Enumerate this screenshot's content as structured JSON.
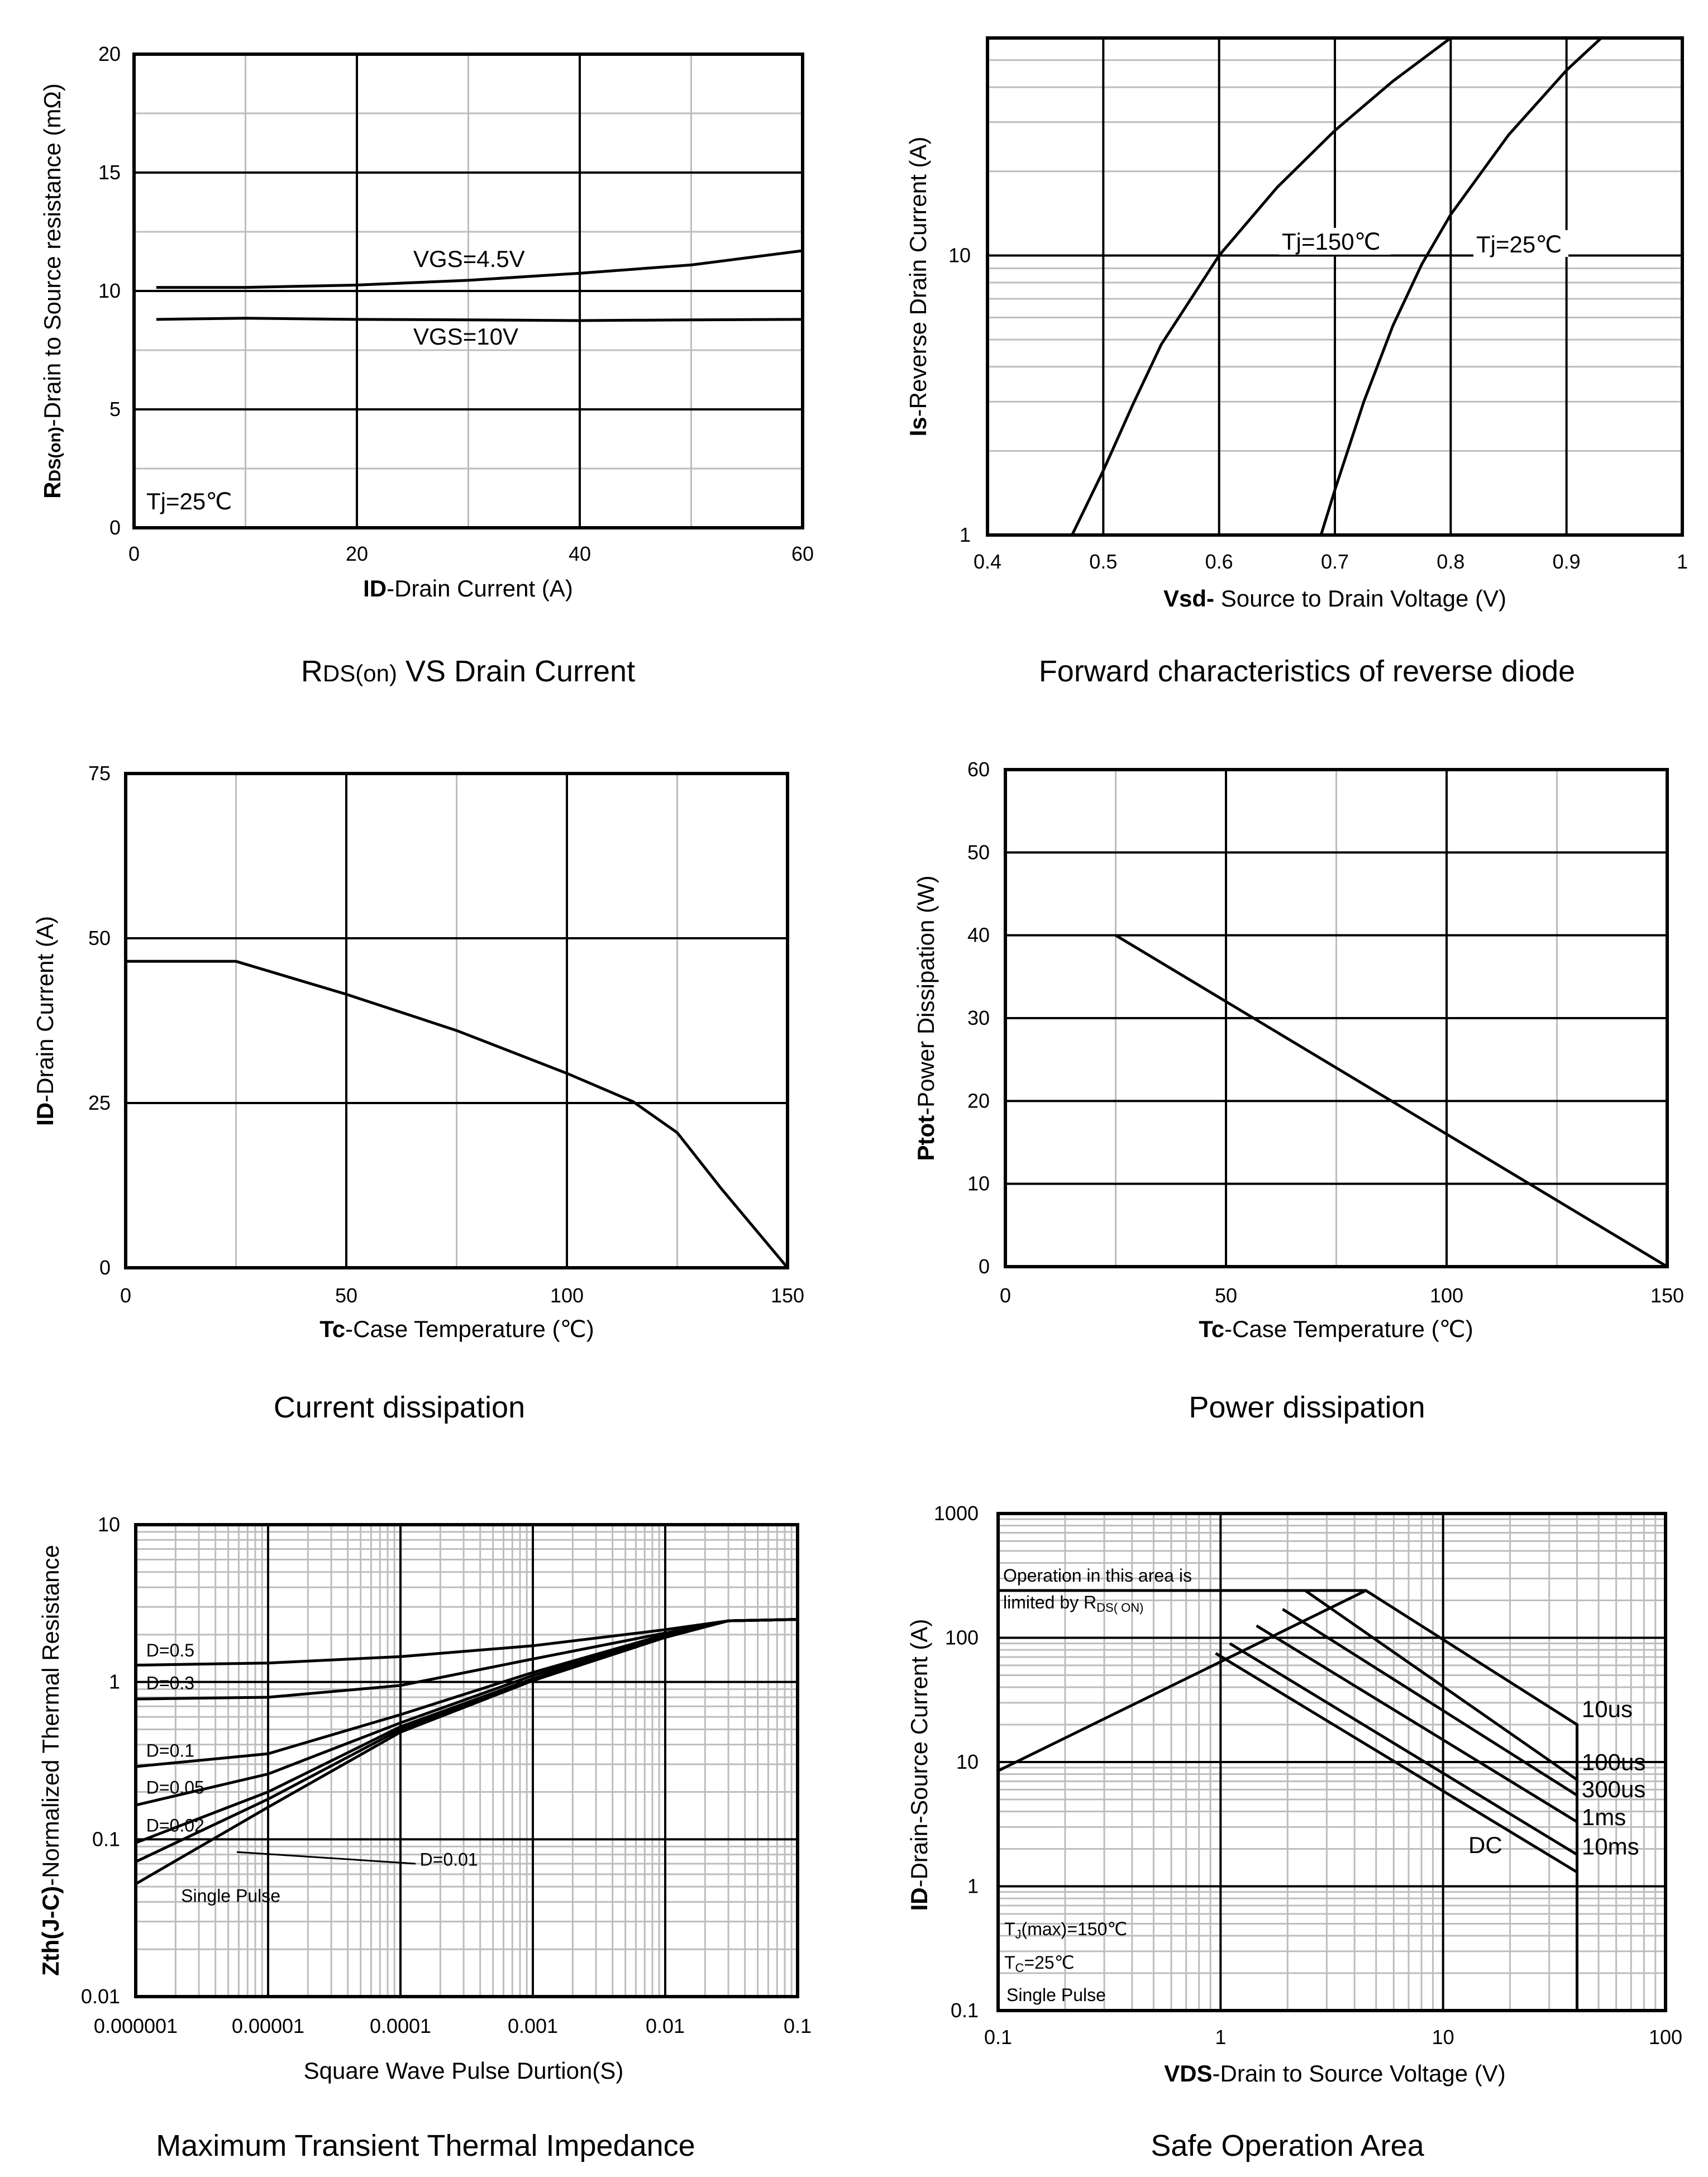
{
  "chart_data": [
    {
      "id": "rds",
      "type": "line",
      "title": "RDS(on) VS Drain Current",
      "title_parts": [
        "R",
        "DS(on)",
        " VS Drain Current"
      ],
      "xlabel": "ID-Drain Current (A)",
      "xlabel_parts": [
        "ID",
        "-Drain Current (A)"
      ],
      "ylabel": "RDS(on)-Drain to Source resistance (mΩ)",
      "ylabel_parts": [
        "R",
        "DS(on)",
        "-Drain to Source resistance (mΩ)"
      ],
      "xlim": [
        0,
        60
      ],
      "ylim": [
        0,
        20
      ],
      "xscale": "linear",
      "yscale": "linear",
      "xticks": [
        0,
        20,
        40,
        60
      ],
      "yticks": [
        0,
        5,
        10,
        15,
        20
      ],
      "xminor": [
        10,
        30,
        50
      ],
      "yminor": [
        2.5,
        7.5,
        12.5,
        17.5
      ],
      "series": [
        {
          "name": "VGS=4.5V",
          "x": [
            2,
            10,
            15,
            20,
            30,
            40,
            50,
            55,
            60
          ],
          "y": [
            10.15,
            10.15,
            10.2,
            10.25,
            10.45,
            10.75,
            11.1,
            11.4,
            11.7
          ]
        },
        {
          "name": "VGS=10V",
          "x": [
            2,
            5,
            10,
            20,
            30,
            40,
            50,
            60
          ],
          "y": [
            8.8,
            8.82,
            8.85,
            8.8,
            8.78,
            8.75,
            8.78,
            8.8
          ]
        }
      ],
      "annotations": [
        {
          "text": "VGS=4.5V",
          "x": 27,
          "y": 11.1
        },
        {
          "text": "VGS=10V",
          "x": 27,
          "y": 7.8
        },
        {
          "text": "Tj=25℃",
          "x": 1,
          "y": 0.8
        }
      ]
    },
    {
      "id": "diode",
      "type": "line",
      "title": "Forward characteristics of reverse diode",
      "xlabel": "Vsd- Source to Drain Voltage (V)",
      "xlabel_parts": [
        "Vsd-",
        " Source to Drain Voltage (V)"
      ],
      "ylabel": "Is-Reverse Drain Current (A)",
      "ylabel_parts": [
        "Is",
        "-Reverse Drain Current (A)"
      ],
      "xlim": [
        0.4,
        1.0
      ],
      "ylim": [
        1,
        60
      ],
      "xscale": "linear",
      "yscale": "log",
      "xticks": [
        0.4,
        0.5,
        0.6,
        0.7,
        0.8,
        0.9,
        1.0
      ],
      "xticklabels": [
        "0.4",
        "0.5",
        "0.6",
        "0.7",
        "0.8",
        "0.9",
        "1"
      ],
      "yticks": [
        1,
        10
      ],
      "yminor": [
        2,
        3,
        4,
        5,
        6,
        7,
        8,
        9,
        20,
        30,
        40,
        50
      ],
      "series": [
        {
          "name": "Tj=150℃",
          "x": [
            0.473,
            0.5,
            0.525,
            0.55,
            0.6,
            0.65,
            0.7,
            0.75,
            0.8
          ],
          "y": [
            1.0,
            1.7,
            2.9,
            4.8,
            10.0,
            17.5,
            28.0,
            42.0,
            60.0
          ]
        },
        {
          "name": "Tj=25℃",
          "x": [
            0.688,
            0.7,
            0.725,
            0.75,
            0.775,
            0.8,
            0.85,
            0.9,
            0.93
          ],
          "y": [
            1.0,
            1.45,
            3.0,
            5.6,
            9.3,
            14.0,
            27.0,
            46.0,
            60.0
          ]
        }
      ],
      "annotations": [
        {
          "text": "Tj=150℃",
          "x": 0.655,
          "y": 10.9
        },
        {
          "text": "Tj=25℃",
          "x": 0.822,
          "y": 10.6
        }
      ]
    },
    {
      "id": "current",
      "type": "line",
      "title": "Current dissipation",
      "xlabel": "Tc-Case Temperature (℃)",
      "xlabel_parts": [
        "Tc",
        "-Case Temperature (℃)"
      ],
      "ylabel": "ID-Drain Current (A)",
      "ylabel_parts": [
        "ID",
        "-Drain Current (A)"
      ],
      "xlim": [
        0,
        150
      ],
      "ylim": [
        0,
        75
      ],
      "xscale": "linear",
      "yscale": "linear",
      "xticks": [
        0,
        50,
        100,
        150
      ],
      "yticks": [
        0,
        25,
        50,
        75
      ],
      "xminor": [
        25,
        75,
        125
      ],
      "yminor": [],
      "series": [
        {
          "name": "ID",
          "x": [
            0,
            25,
            50,
            75,
            100,
            115,
            125,
            135,
            150
          ],
          "y": [
            46.5,
            46.5,
            41.5,
            36,
            29.5,
            25.2,
            20.5,
            12,
            0
          ]
        }
      ],
      "annotations": []
    },
    {
      "id": "power",
      "type": "line",
      "title": "Power dissipation",
      "xlabel": "Tc-Case Temperature (℃)",
      "xlabel_parts": [
        "Tc",
        "-Case Temperature (℃)"
      ],
      "ylabel": "Ptot-Power Dissipation (W)",
      "ylabel_parts": [
        "Ptot",
        "-Power Dissipation  (W)"
      ],
      "xlim": [
        0,
        150
      ],
      "ylim": [
        0,
        60
      ],
      "xscale": "linear",
      "yscale": "linear",
      "xticks": [
        0,
        50,
        100,
        150
      ],
      "yticks": [
        0,
        10,
        20,
        30,
        40,
        50,
        60
      ],
      "xminor": [
        25,
        75,
        125
      ],
      "yminor": [],
      "series": [
        {
          "name": "Ptot",
          "x": [
            25,
            150
          ],
          "y": [
            40,
            0
          ]
        }
      ],
      "annotations": []
    },
    {
      "id": "zth",
      "type": "line",
      "title": "Maximum Transient Thermal Impedance",
      "xlabel": "Square Wave Pulse Durtion(S)",
      "ylabel": "Zth(J-C)-Normalized Thermal Resistance",
      "ylabel_parts": [
        "Zth(J-C)",
        "-Normalized Thermal Resistance"
      ],
      "xlim": [
        1e-06,
        0.1
      ],
      "ylim": [
        0.01,
        10
      ],
      "xscale": "log",
      "yscale": "log",
      "xticks": [
        1e-06,
        1e-05,
        0.0001,
        0.001,
        0.01,
        0.1
      ],
      "xticklabels": [
        "0.000001",
        "0.00001",
        "0.0001",
        "0.001",
        "0.01",
        "0.1"
      ],
      "yticks": [
        0.01,
        0.1,
        1,
        10
      ],
      "yticklabels": [
        "0.01",
        "0.1",
        "1",
        "10"
      ],
      "series": [
        {
          "name": "D=0.5",
          "x": [
            1e-06,
            1e-05,
            0.0001,
            0.001,
            0.01,
            0.03,
            0.1
          ],
          "y": [
            1.28,
            1.32,
            1.45,
            1.7,
            2.15,
            2.45,
            2.5
          ]
        },
        {
          "name": "D=0.3",
          "x": [
            1e-06,
            1e-05,
            0.0001,
            0.001,
            0.01,
            0.03,
            0.1
          ],
          "y": [
            0.78,
            0.8,
            0.95,
            1.4,
            2.05,
            2.45,
            2.5
          ]
        },
        {
          "name": "D=0.1",
          "x": [
            1e-06,
            1e-05,
            0.0001,
            0.001,
            0.01,
            0.03,
            0.1
          ],
          "y": [
            0.29,
            0.35,
            0.62,
            1.15,
            2.0,
            2.45,
            2.5
          ]
        },
        {
          "name": "D=0.05",
          "x": [
            1e-06,
            1e-05,
            0.0001,
            0.001,
            0.01,
            0.03,
            0.1
          ],
          "y": [
            0.165,
            0.26,
            0.55,
            1.1,
            1.95,
            2.45,
            2.5
          ]
        },
        {
          "name": "D=0.02",
          "x": [
            1e-06,
            1e-05,
            0.0001,
            0.001,
            0.01,
            0.03,
            0.1
          ],
          "y": [
            0.095,
            0.2,
            0.52,
            1.05,
            1.95,
            2.45,
            2.5
          ]
        },
        {
          "name": "D=0.01",
          "x": [
            1e-06,
            1e-05,
            0.0001,
            0.001,
            0.01,
            0.03,
            0.1
          ],
          "y": [
            0.072,
            0.18,
            0.5,
            1.05,
            1.93,
            2.45,
            2.5
          ]
        },
        {
          "name": "Single Pulse",
          "x": [
            1e-06,
            1e-05,
            0.0001,
            0.001,
            0.01,
            0.03,
            0.1
          ],
          "y": [
            0.052,
            0.16,
            0.48,
            1.02,
            1.92,
            2.45,
            2.5
          ]
        }
      ],
      "annotations": [
        {
          "text": "D=0.5",
          "x": 1.2e-06,
          "y": 1.45
        },
        {
          "text": "D=0.3",
          "x": 1.2e-06,
          "y": 0.9
        },
        {
          "text": "D=0.1",
          "x": 1.2e-06,
          "y": 0.335
        },
        {
          "text": "D=0.05",
          "x": 1.2e-06,
          "y": 0.195
        },
        {
          "text": "D=0.02",
          "x": 1.2e-06,
          "y": 0.112
        },
        {
          "text": "D=0.01",
          "x": 0.00014,
          "y": 0.068
        },
        {
          "text": "Single Pulse",
          "x": 2.2e-06,
          "y": 0.04
        }
      ],
      "leader": {
        "x": [
          5.8e-06,
          0.00013
        ],
        "y": [
          0.083,
          0.07
        ]
      }
    },
    {
      "id": "soa",
      "type": "line",
      "title": "Safe Operation Area",
      "xlabel": "VDS-Drain to Source Voltage (V)",
      "xlabel_parts": [
        "VDS",
        "-Drain to Source Voltage (V)"
      ],
      "ylabel": "ID-Drain-Source Current (A)",
      "ylabel_parts": [
        "ID",
        "-Drain-Source  Current  (A)"
      ],
      "xlim": [
        0.1,
        100
      ],
      "ylim": [
        0.1,
        1000
      ],
      "xscale": "log",
      "yscale": "log",
      "xticks": [
        0.1,
        1,
        10,
        100
      ],
      "xticklabels": [
        "0.1",
        "1",
        "10",
        "100"
      ],
      "yticks": [
        0.1,
        1,
        10,
        100,
        1000
      ],
      "yticklabels": [
        "0.1",
        "1",
        "10",
        "100",
        "1000"
      ],
      "series": [
        {
          "name": "RDS(on) limit",
          "x": [
            0.1,
            4.5
          ],
          "y": [
            240,
            240
          ]
        },
        {
          "name": "10us",
          "x": [
            0.1,
            4.5,
            40,
            40
          ],
          "y": [
            8.5,
            240,
            20,
            0.1
          ]
        },
        {
          "name": "100us",
          "x": [
            2.4,
            40
          ],
          "y": [
            240,
            7.2
          ]
        },
        {
          "name": "300us",
          "x": [
            1.9,
            40
          ],
          "y": [
            170,
            5.4
          ]
        },
        {
          "name": "1ms",
          "x": [
            1.45,
            40
          ],
          "y": [
            125,
            3.3
          ]
        },
        {
          "name": "10ms",
          "x": [
            1.1,
            40
          ],
          "y": [
            90,
            1.8
          ]
        },
        {
          "name": "DC",
          "x": [
            0.95,
            40
          ],
          "y": [
            75,
            1.3
          ]
        }
      ],
      "annotations": [
        {
          "text": "10us",
          "x": 42,
          "y": 23
        },
        {
          "text": "100us",
          "x": 42,
          "y": 8.6
        },
        {
          "text": "300us",
          "x": 42,
          "y": 5.2
        },
        {
          "text": "1ms",
          "x": 42,
          "y": 3.1
        },
        {
          "text": "10ms",
          "x": 42,
          "y": 1.8
        },
        {
          "text": "DC",
          "x": 13,
          "y": 1.85
        }
      ],
      "notes": [
        "Operation in this area is",
        "limited by R",
        "DS( ON)"
      ],
      "conditions": {
        "tj_main": "T",
        "tj_sub": "J",
        "tj_rest": "(max)=150℃",
        "tc_main": "T",
        "tc_sub": "C",
        "tc_rest": "=25℃",
        "pulse": "Single  Pulse"
      }
    }
  ]
}
